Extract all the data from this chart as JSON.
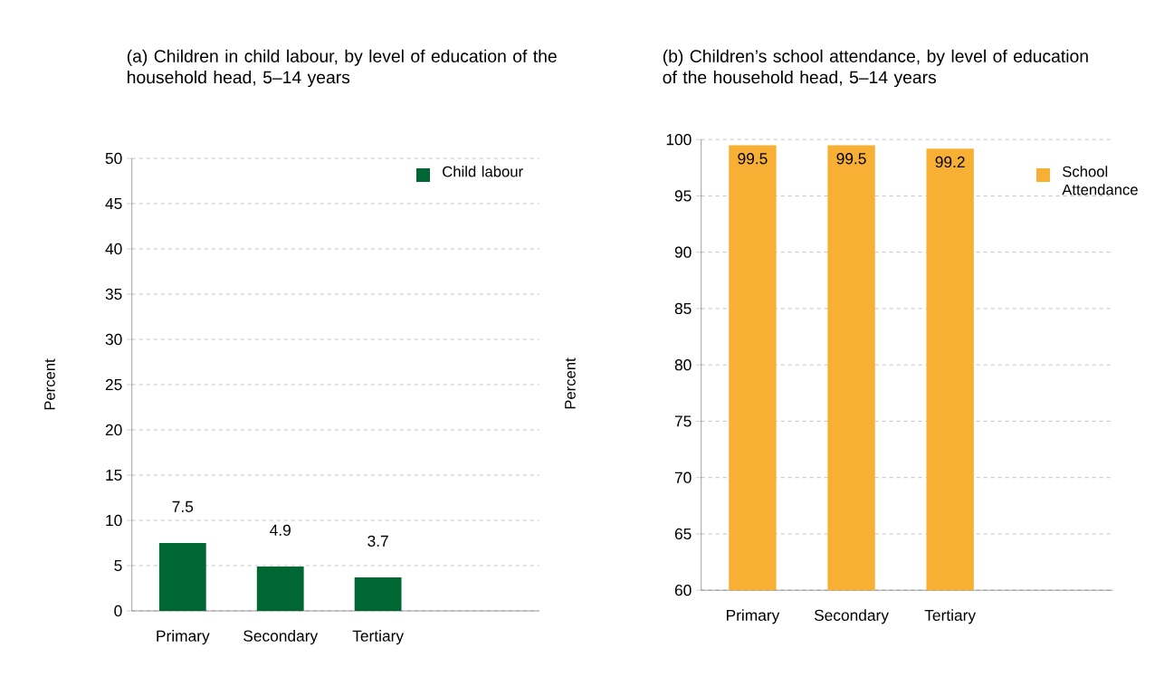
{
  "chart_data": [
    {
      "type": "bar",
      "title": "(a) Children in child labour, by level of education of the household head, 5–14 years",
      "ylabel": "Percent",
      "categories": [
        "Primary",
        "Secondary",
        "Tertiary"
      ],
      "series": [
        {
          "name": "Child labour",
          "color": "#006633",
          "values": [
            7.5,
            4.9,
            3.7
          ]
        }
      ],
      "ylim": [
        0,
        50
      ],
      "yticks": [
        0,
        5,
        10,
        15,
        20,
        25,
        30,
        35,
        40,
        45,
        50
      ],
      "grid": "y",
      "legend": "top right",
      "data_labels": true
    },
    {
      "type": "bar",
      "title": "(b) Children’s school attendance, by level of education of the household head, 5–14 years",
      "ylabel": "Percent",
      "categories": [
        "Primary",
        "Secondary",
        "Tertiary"
      ],
      "series": [
        {
          "name": "School Attendance",
          "color": "#f7b033",
          "values": [
            99.5,
            99.5,
            99.2
          ]
        }
      ],
      "ylim": [
        60,
        100
      ],
      "yticks": [
        60,
        65,
        70,
        75,
        80,
        85,
        90,
        95,
        100
      ],
      "grid": "y",
      "legend": "right",
      "data_labels": true
    }
  ]
}
